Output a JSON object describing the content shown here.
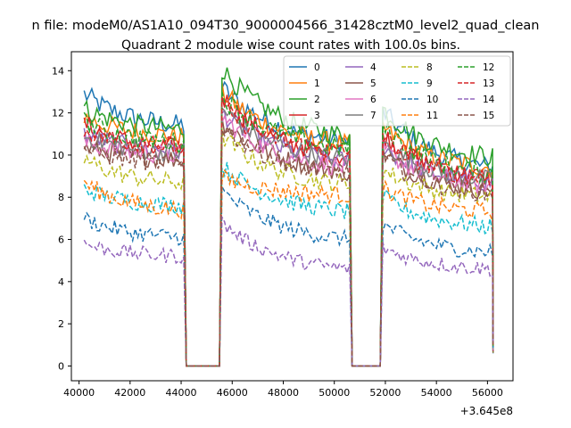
{
  "figure": {
    "suptitle": "n file: modeM0/AS1A10_094T30_9000004566_31428cztM0_level2_quad_clean",
    "title": "Quadrant 2 module wise count rates with 100.0s bins.",
    "offset_label": "+3.645e8"
  },
  "chart_data": {
    "type": "line",
    "title": "Quadrant 2 module wise count rates with 100.0s bins.",
    "xlabel": "",
    "ylabel": "",
    "x_offset": "+3.645e8",
    "xlim": [
      39700,
      57000
    ],
    "ylim": [
      -0.7,
      14.9
    ],
    "xticks": [
      40000,
      42000,
      44000,
      46000,
      48000,
      50000,
      52000,
      54000,
      56000
    ],
    "yticks": [
      0,
      2,
      4,
      6,
      8,
      10,
      12,
      14
    ],
    "grid": false,
    "legend_position": "top-right",
    "legend_columns": 4,
    "segments": [
      [
        40200,
        44100
      ],
      [
        44200,
        45500
      ],
      [
        45600,
        50600
      ],
      [
        50700,
        51800
      ],
      [
        51900,
        56200
      ]
    ],
    "series": [
      {
        "name": "0",
        "color": "#1f77b4",
        "dash": "solid",
        "start": 12.9,
        "end_seg1": 11.4,
        "start_seg2": 13.2,
        "end_seg2": 10.6,
        "start_seg3": 12.1,
        "end_seg3": 9.4
      },
      {
        "name": "1",
        "color": "#ff7f0e",
        "dash": "solid",
        "start": 11.8,
        "end_seg1": 10.9,
        "start_seg2": 13.0,
        "end_seg2": 10.5,
        "start_seg3": 11.3,
        "end_seg3": 9.4
      },
      {
        "name": "2",
        "color": "#2ca02c",
        "dash": "solid",
        "start": 12.2,
        "end_seg1": 11.2,
        "start_seg2": 14.1,
        "end_seg2": 10.9,
        "start_seg3": 12.2,
        "end_seg3": 9.9
      },
      {
        "name": "3",
        "color": "#d62728",
        "dash": "solid",
        "start": 11.5,
        "end_seg1": 10.3,
        "start_seg2": 12.8,
        "end_seg2": 9.9,
        "start_seg3": 11.0,
        "end_seg3": 8.9
      },
      {
        "name": "4",
        "color": "#9467bd",
        "dash": "solid",
        "start": 11.0,
        "end_seg1": 10.2,
        "start_seg2": 12.0,
        "end_seg2": 9.7,
        "start_seg3": 10.4,
        "end_seg3": 8.7
      },
      {
        "name": "5",
        "color": "#8c564b",
        "dash": "solid",
        "start": 10.4,
        "end_seg1": 9.8,
        "start_seg2": 11.6,
        "end_seg2": 9.2,
        "start_seg3": 10.1,
        "end_seg3": 8.3
      },
      {
        "name": "6",
        "color": "#e377c2",
        "dash": "solid",
        "start": 10.6,
        "end_seg1": 10.0,
        "start_seg2": 11.8,
        "end_seg2": 9.4,
        "start_seg3": 10.3,
        "end_seg3": 8.5
      },
      {
        "name": "7",
        "color": "#7f7f7f",
        "dash": "solid",
        "start": 10.9,
        "end_seg1": 10.1,
        "start_seg2": 12.2,
        "end_seg2": 9.8,
        "start_seg3": 10.6,
        "end_seg3": 8.8
      },
      {
        "name": "8",
        "color": "#bcbd22",
        "dash": "dashed",
        "start": 9.8,
        "end_seg1": 8.7,
        "start_seg2": 10.9,
        "end_seg2": 8.6,
        "start_seg3": 9.3,
        "end_seg3": 8.0
      },
      {
        "name": "9",
        "color": "#17becf",
        "dash": "dashed",
        "start": 8.4,
        "end_seg1": 7.6,
        "start_seg2": 9.5,
        "end_seg2": 7.3,
        "start_seg3": 8.0,
        "end_seg3": 6.6
      },
      {
        "name": "10",
        "color": "#1f77b4",
        "dash": "dashed",
        "start": 7.0,
        "end_seg1": 6.1,
        "start_seg2": 8.3,
        "end_seg2": 6.0,
        "start_seg3": 6.7,
        "end_seg3": 5.4
      },
      {
        "name": "11",
        "color": "#ff7f0e",
        "dash": "dashed",
        "start": 8.7,
        "end_seg1": 7.4,
        "start_seg2": 8.9,
        "end_seg2": 8.1,
        "start_seg3": 8.4,
        "end_seg3": 7.3
      },
      {
        "name": "12",
        "color": "#2ca02c",
        "dash": "dashed",
        "start": 11.6,
        "end_seg1": 10.6,
        "start_seg2": 12.8,
        "end_seg2": 10.3,
        "start_seg3": 11.4,
        "end_seg3": 9.1
      },
      {
        "name": "13",
        "color": "#d62728",
        "dash": "dashed",
        "start": 11.2,
        "end_seg1": 10.4,
        "start_seg2": 12.3,
        "end_seg2": 10.1,
        "start_seg3": 10.9,
        "end_seg3": 8.9
      },
      {
        "name": "14",
        "color": "#9467bd",
        "dash": "dashed",
        "start": 5.8,
        "end_seg1": 5.2,
        "start_seg2": 6.8,
        "end_seg2": 4.6,
        "start_seg3": 5.6,
        "end_seg3": 4.6
      },
      {
        "name": "15",
        "color": "#8c564b",
        "dash": "dashed",
        "start": 10.3,
        "end_seg1": 9.6,
        "start_seg2": 11.4,
        "end_seg2": 9.1,
        "start_seg3": 9.9,
        "end_seg3": 8.2
      }
    ]
  }
}
